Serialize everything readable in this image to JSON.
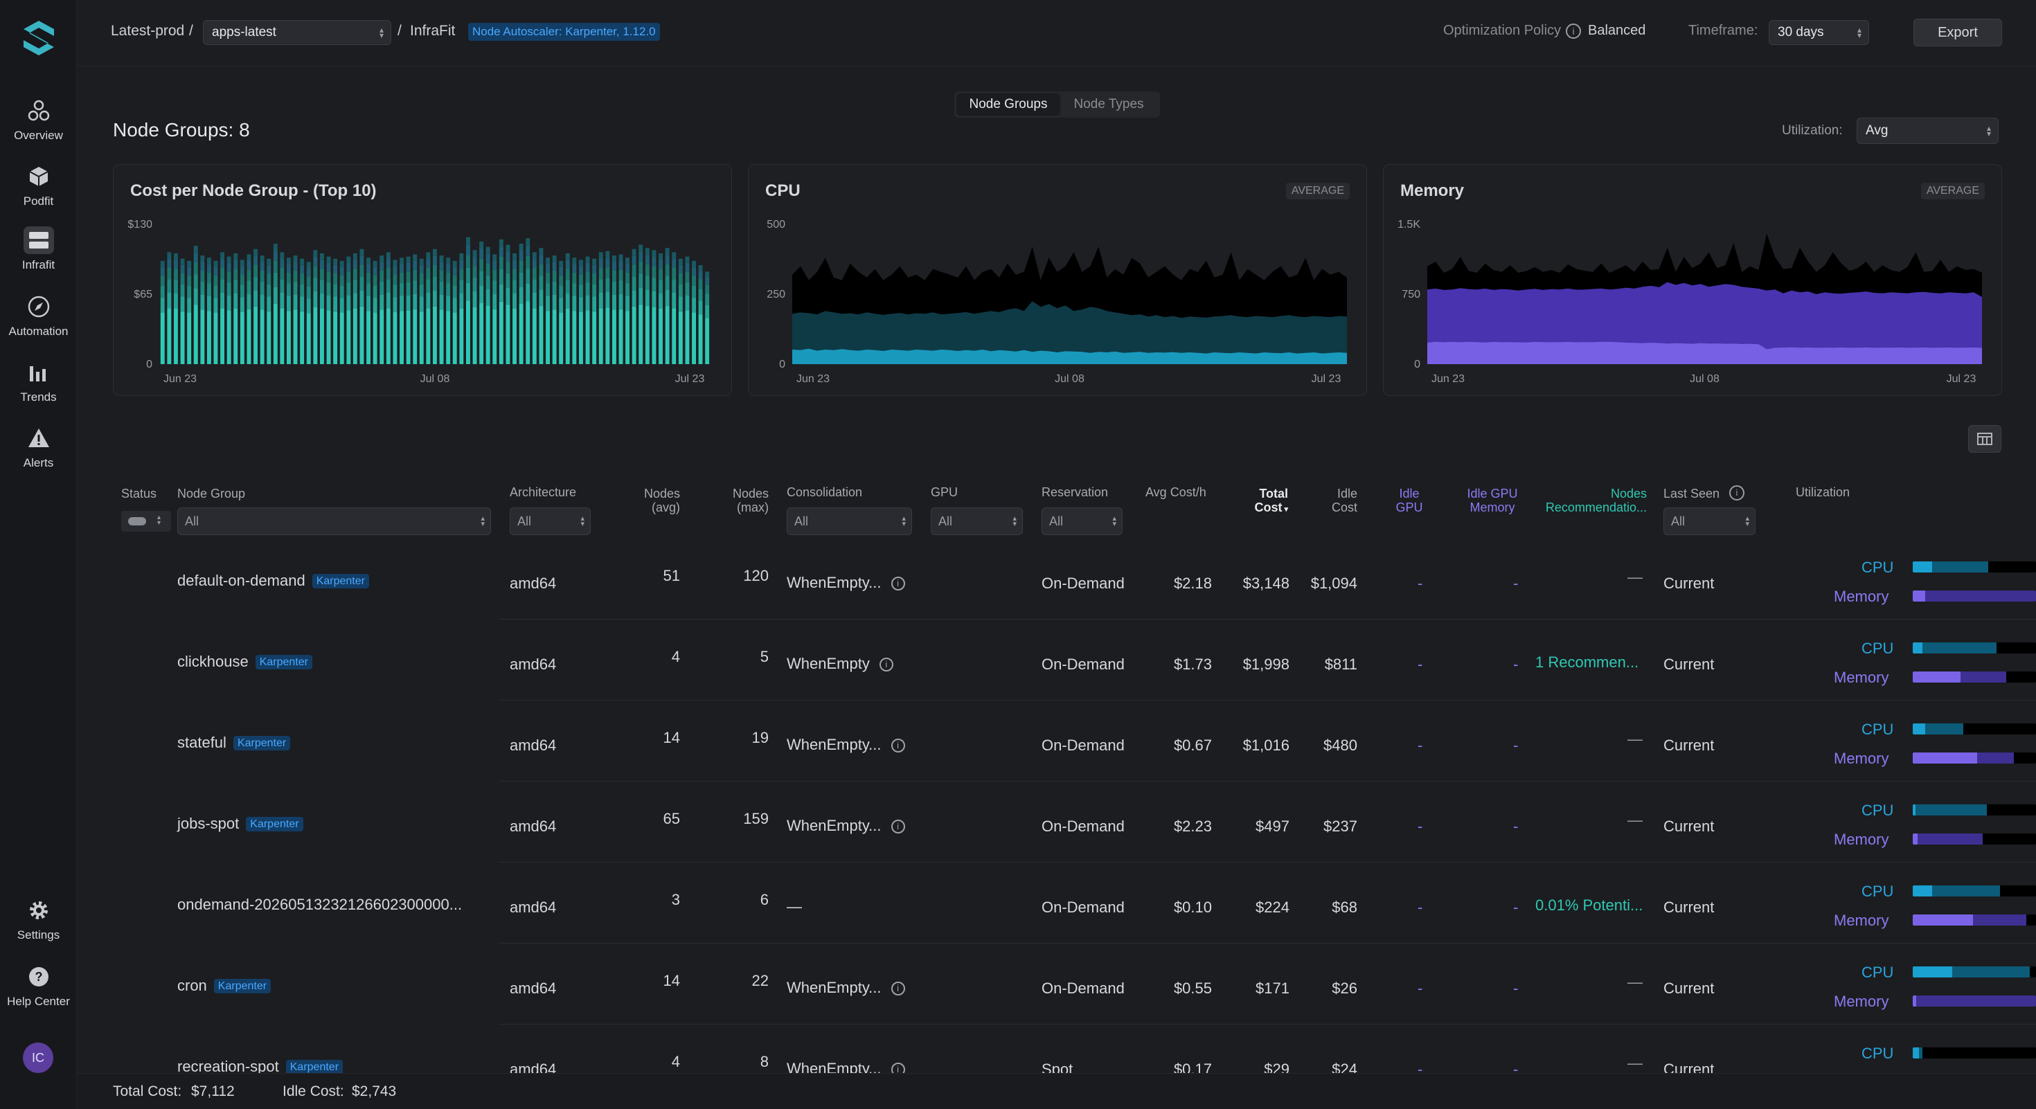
{
  "sidebar": {
    "items": [
      {
        "label": "Overview",
        "icon": "overview-icon"
      },
      {
        "label": "Podfit",
        "icon": "cube-icon"
      },
      {
        "label": "Infrafit",
        "icon": "server-icon",
        "active": true
      },
      {
        "label": "Automation",
        "icon": "compass-icon"
      },
      {
        "label": "Trends",
        "icon": "bar-chart-icon"
      },
      {
        "label": "Alerts",
        "icon": "warning-icon"
      }
    ],
    "bottom": [
      {
        "label": "Settings",
        "icon": "gear-icon"
      },
      {
        "label": "Help Center",
        "icon": "help-icon"
      }
    ],
    "avatar": "IC"
  },
  "topbar": {
    "cluster": "Latest-prod",
    "sep1": "/",
    "namespace": "apps-latest",
    "sep2": "/",
    "page": "InfraFit",
    "autoscaler": "Node Autoscaler: Karpenter, 1.12.0",
    "policy_label": "Optimization Policy",
    "policy_value": "Balanced",
    "timeframe_label": "Timeframe:",
    "timeframe_value": "30 days",
    "export": "Export"
  },
  "view_toggle": {
    "active": "Node Groups",
    "inactive": "Node Types"
  },
  "heading": "Node Groups: 8",
  "utilization": {
    "label": "Utilization:",
    "value": "Avg"
  },
  "charts": {
    "cost": {
      "title": "Cost per Node Group - (Top 10)"
    },
    "cpu": {
      "title": "CPU",
      "tag": "AVERAGE"
    },
    "memory": {
      "title": "Memory",
      "tag": "AVERAGE"
    }
  },
  "chart_data": [
    {
      "type": "bar",
      "title": "Cost per Node Group - (Top 10)",
      "stacked": true,
      "yticks": [
        "$130",
        "$65",
        "0"
      ],
      "ylim": [
        0,
        130
      ],
      "xticks": [
        "Jun 23",
        "Jul 08",
        "Jul 23"
      ],
      "series_colors": [
        "#2fc9b5",
        "#23a597",
        "#1d8a80",
        "#1a756d",
        "#1e5f73",
        "#185a64"
      ],
      "values": [
        96,
        104,
        103,
        98,
        96,
        110,
        101,
        99,
        96,
        104,
        100,
        103,
        97,
        102,
        107,
        101,
        98,
        112,
        104,
        99,
        101,
        98,
        95,
        106,
        103,
        100,
        98,
        96,
        100,
        103,
        107,
        99,
        96,
        101,
        104,
        97,
        99,
        100,
        102,
        98,
        104,
        107,
        101,
        99,
        96,
        103,
        118,
        106,
        114,
        109,
        102,
        116,
        111,
        103,
        112,
        117,
        104,
        108,
        99,
        101,
        96,
        103,
        99,
        97,
        100,
        98,
        104,
        105,
        101,
        102,
        99,
        107,
        111,
        108,
        106,
        103,
        108,
        104,
        98,
        100,
        96,
        92,
        86
      ]
    },
    {
      "type": "area",
      "title": "CPU",
      "yticks": [
        "500",
        "250",
        "0"
      ],
      "ylim": [
        0,
        500
      ],
      "xticks": [
        "Jun 23",
        "Jul 08",
        "Jul 23"
      ],
      "series": [
        {
          "color": "#000000",
          "values": [
            320,
            350,
            300,
            330,
            380,
            310,
            300,
            360,
            330,
            310,
            340,
            300,
            320,
            350,
            310,
            320,
            300,
            340,
            330,
            320,
            310,
            350,
            300,
            330,
            340,
            310,
            360,
            320,
            330,
            420,
            300,
            380,
            330,
            350,
            400,
            330,
            350,
            420,
            310,
            340,
            320,
            380,
            360,
            310,
            330,
            350,
            320,
            300,
            340,
            330,
            370,
            310,
            320,
            400,
            300,
            340,
            320,
            300,
            330,
            350,
            310,
            320,
            380,
            300,
            340,
            320,
            330,
            310
          ]
        },
        {
          "color": "#0f3d4a",
          "values": [
            180,
            185,
            182,
            178,
            190,
            185,
            180,
            182,
            178,
            185,
            180,
            176,
            180,
            183,
            178,
            182,
            180,
            185,
            178,
            180,
            183,
            186,
            180,
            185,
            190,
            186,
            195,
            200,
            190,
            225,
            205,
            215,
            200,
            210,
            190,
            195,
            205,
            200,
            190,
            185,
            180,
            175,
            178,
            170,
            175,
            168,
            172,
            165,
            170,
            168,
            166,
            170,
            172,
            175,
            170,
            168,
            172,
            170,
            168,
            172,
            175,
            170,
            168,
            172,
            170,
            168,
            172,
            170
          ]
        },
        {
          "color": "#1a9fc4",
          "values": [
            52,
            50,
            55,
            48,
            52,
            50,
            54,
            50,
            48,
            52,
            50,
            47,
            52,
            50,
            48,
            52,
            50,
            48,
            52,
            50,
            47,
            50,
            48,
            52,
            46,
            50,
            48,
            45,
            50,
            44,
            48,
            46,
            42,
            46,
            45,
            44,
            40,
            44,
            42,
            45,
            40,
            42,
            44,
            40,
            42,
            41,
            43,
            40,
            42,
            40,
            38,
            42,
            40,
            39,
            42,
            40,
            38,
            42,
            40,
            39,
            42,
            38,
            40,
            42,
            38,
            40,
            42,
            40
          ]
        }
      ]
    },
    {
      "type": "area",
      "title": "Memory",
      "yticks": [
        "1.5K",
        "750",
        "0"
      ],
      "ylim": [
        0,
        1500
      ],
      "xticks": [
        "Jun 23",
        "Jul 08",
        "Jul 23"
      ],
      "series": [
        {
          "color": "#000000",
          "values": [
            1050,
            1100,
            980,
            1020,
            1150,
            1000,
            980,
            1080,
            1010,
            990,
            1060,
            980,
            1000,
            1040,
            990,
            1010,
            980,
            1070,
            1020,
            1000,
            990,
            1080,
            980,
            1020,
            1060,
            990,
            1100,
            1010,
            1020,
            1250,
            990,
            1150,
            1030,
            1080,
            1200,
            1030,
            1060,
            1300,
            990,
            1050,
            1010,
            1400,
            1150,
            1020,
            1030,
            1250,
            1100,
            990,
            1060,
            1200,
            1080,
            1000,
            1030,
            1100,
            990,
            1060,
            1010,
            990,
            1040,
            1200,
            990,
            1000,
            1120,
            990,
            1050,
            1010,
            1020,
            980
          ]
        },
        {
          "color": "#4d36b8",
          "values": [
            800,
            810,
            795,
            800,
            815,
            805,
            800,
            810,
            795,
            805,
            800,
            790,
            800,
            808,
            795,
            805,
            800,
            812,
            798,
            800,
            806,
            812,
            800,
            808,
            820,
            812,
            830,
            840,
            825,
            880,
            850,
            870,
            845,
            860,
            830,
            845,
            860,
            850,
            830,
            820,
            810,
            790,
            800,
            760,
            790,
            770,
            780,
            750,
            770,
            760,
            755,
            765,
            770,
            780,
            765,
            760,
            770,
            765,
            760,
            770,
            775,
            765,
            760,
            770,
            765,
            760,
            770,
            720
          ]
        },
        {
          "color": "#7b63e8",
          "values": [
            230,
            240,
            235,
            238,
            235,
            240,
            236,
            232,
            238,
            235,
            236,
            234,
            232,
            238,
            236,
            234,
            236,
            238,
            234,
            236,
            235,
            240,
            238,
            236,
            230,
            228,
            225,
            230,
            226,
            220,
            225,
            222,
            218,
            224,
            220,
            222,
            218,
            220,
            215,
            218,
            214,
            160,
            175,
            178,
            180,
            176,
            178,
            175,
            177,
            176,
            178,
            175,
            176,
            178,
            175,
            177,
            176,
            178,
            175,
            176,
            178,
            175,
            176,
            178,
            175,
            176,
            178,
            175
          ]
        }
      ]
    }
  ],
  "table": {
    "headers": {
      "status": "Status",
      "node_group": "Node Group",
      "architecture": "Architecture",
      "nodes_avg": [
        "Nodes",
        "(avg)"
      ],
      "nodes_max": [
        "Nodes",
        "(max)"
      ],
      "consolidation": "Consolidation",
      "gpu": "GPU",
      "reservation": "Reservation",
      "avg_cost": "Avg Cost/h",
      "total_cost": [
        "Total",
        "Cost"
      ],
      "idle_cost": [
        "Idle",
        "Cost"
      ],
      "idle_gpu": [
        "Idle",
        "GPU"
      ],
      "idle_gpu_mem": [
        "Idle GPU",
        "Memory"
      ],
      "nodes_rec": [
        "Nodes",
        "Recommendatio..."
      ],
      "last_seen": "Last Seen",
      "utilization": "Utilization"
    },
    "filters": {
      "node_group": "All",
      "architecture": "All",
      "consolidation": "All",
      "gpu": "All",
      "reservation": "All",
      "last_seen": "All"
    },
    "util_labels": {
      "cpu": "CPU",
      "memory": "Memory"
    },
    "rows": [
      {
        "name": "default-on-demand",
        "badge": "Karpenter",
        "arch": "amd64",
        "nodes_avg": "51",
        "nodes_max": "120",
        "consolidation": "WhenEmpty...",
        "consolidation_info": true,
        "reservation": "On-Demand",
        "avg_cost": "$2.18",
        "total_cost": "$3,148",
        "idle_cost": "$1,094",
        "idle_gpu": "-",
        "idle_gpu_mem": "-",
        "rec": "—",
        "rec_type": "none",
        "last_seen": "Current",
        "cpu": [
          0.16,
          0.61
        ],
        "mem": [
          0.1,
          1.0
        ]
      },
      {
        "name": "clickhouse",
        "badge": "Karpenter",
        "arch": "amd64",
        "nodes_avg": "4",
        "nodes_max": "5",
        "consolidation": "WhenEmpty",
        "consolidation_info": true,
        "reservation": "On-Demand",
        "avg_cost": "$1.73",
        "total_cost": "$1,998",
        "idle_cost": "$811",
        "idle_gpu": "-",
        "idle_gpu_mem": "-",
        "rec": "1 Recommen...",
        "rec_type": "link",
        "last_seen": "Current",
        "cpu": [
          0.08,
          0.68
        ],
        "mem": [
          0.39,
          0.76
        ]
      },
      {
        "name": "stateful",
        "badge": "Karpenter",
        "arch": "amd64",
        "nodes_avg": "14",
        "nodes_max": "19",
        "consolidation": "WhenEmpty...",
        "consolidation_info": true,
        "reservation": "On-Demand",
        "avg_cost": "$0.67",
        "total_cost": "$1,016",
        "idle_cost": "$480",
        "idle_gpu": "-",
        "idle_gpu_mem": "-",
        "rec": "—",
        "rec_type": "none",
        "last_seen": "Current",
        "cpu": [
          0.1,
          0.41
        ],
        "mem": [
          0.52,
          0.82
        ]
      },
      {
        "name": "jobs-spot",
        "badge": "Karpenter",
        "arch": "amd64",
        "nodes_avg": "65",
        "nodes_max": "159",
        "consolidation": "WhenEmpty...",
        "consolidation_info": true,
        "reservation": "On-Demand",
        "avg_cost": "$2.23",
        "total_cost": "$497",
        "idle_cost": "$237",
        "idle_gpu": "-",
        "idle_gpu_mem": "-",
        "rec": "—",
        "rec_type": "none",
        "last_seen": "Current",
        "cpu": [
          0.02,
          0.6
        ],
        "mem": [
          0.04,
          0.57
        ]
      },
      {
        "name": "ondemand-20260513232126602300000...",
        "badge": "",
        "arch": "amd64",
        "nodes_avg": "3",
        "nodes_max": "6",
        "consolidation": "—",
        "consolidation_info": false,
        "reservation": "On-Demand",
        "avg_cost": "$0.10",
        "total_cost": "$224",
        "idle_cost": "$68",
        "idle_gpu": "-",
        "idle_gpu_mem": "-",
        "rec": "0.01% Potenti...",
        "rec_type": "teal",
        "last_seen": "Current",
        "cpu": [
          0.16,
          0.71
        ],
        "mem": [
          0.49,
          0.92
        ]
      },
      {
        "name": "cron",
        "badge": "Karpenter",
        "arch": "amd64",
        "nodes_avg": "14",
        "nodes_max": "22",
        "consolidation": "WhenEmpty...",
        "consolidation_info": true,
        "reservation": "On-Demand",
        "avg_cost": "$0.55",
        "total_cost": "$171",
        "idle_cost": "$26",
        "idle_gpu": "-",
        "idle_gpu_mem": "-",
        "rec": "—",
        "rec_type": "none",
        "last_seen": "Current",
        "cpu": [
          0.32,
          0.95
        ],
        "mem": [
          0.03,
          1.0
        ]
      },
      {
        "name": "recreation-spot",
        "badge": "Karpenter",
        "arch": "amd64",
        "nodes_avg": "4",
        "nodes_max": "8",
        "consolidation": "WhenEmpty...",
        "consolidation_info": true,
        "reservation": "Spot",
        "avg_cost": "$0.17",
        "total_cost": "$29",
        "idle_cost": "$24",
        "idle_gpu": "-",
        "idle_gpu_mem": "-",
        "rec": "—",
        "rec_type": "none",
        "last_seen": "Current",
        "cpu": [
          0.05,
          0.08
        ],
        "mem": null
      }
    ]
  },
  "footer": {
    "total_label": "Total Cost:",
    "total_value": "$7,112",
    "idle_label": "Idle Cost:",
    "idle_value": "$2,743"
  }
}
